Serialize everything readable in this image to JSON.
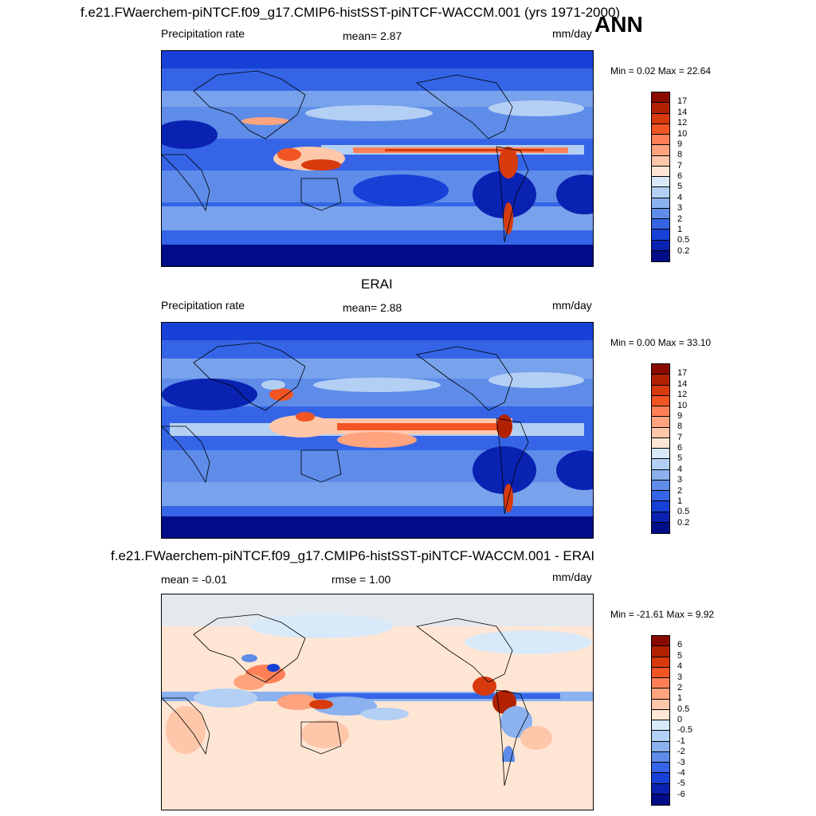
{
  "header": {
    "main_title": "f.e21.FWaerchem-piNTCF.f09_g17.CMIP6-histSST-piNTCF-WACCM.001 (yrs 1971-2000)",
    "season": "ANN"
  },
  "panels": [
    {
      "id": "model",
      "title": "",
      "left_label": "Precipitation rate",
      "center_label": "mean=   2.87",
      "right_label": "mm/day",
      "minmax": "Min =   0.02 Max =  22.64",
      "palette": "precip"
    },
    {
      "id": "obs",
      "title": "ERAI",
      "left_label": "Precipitation rate",
      "center_label": "mean=   2.88",
      "right_label": "mm/day",
      "minmax": "Min =   0.00 Max =  33.10",
      "palette": "precip"
    },
    {
      "id": "diff",
      "title": "f.e21.FWaerchem-piNTCF.f09_g17.CMIP6-histSST-piNTCF-WACCM.001 - ERAI",
      "left_label": "mean =  -0.01",
      "center_label": "rmse =   1.00",
      "right_label": "mm/day",
      "minmax": "Min = -21.61 Max =   9.92",
      "palette": "diff"
    }
  ],
  "colorbars": {
    "precip": {
      "levels": [
        "17",
        "14",
        "12",
        "10",
        "9",
        "8",
        "7",
        "6",
        "5",
        "4",
        "3",
        "2",
        "1",
        "0.5",
        "0.2"
      ],
      "colors": [
        "#8b0a00",
        "#b22200",
        "#d73a0c",
        "#f25524",
        "#ff8057",
        "#ffa47e",
        "#ffc7aa",
        "#ffe6d4",
        "#d8e9fa",
        "#b3d0f4",
        "#8bb1ee",
        "#5e8ce8",
        "#3565e6",
        "#1740d6",
        "#0a22b2",
        "#000c88"
      ]
    },
    "diff": {
      "levels": [
        "6",
        "5",
        "4",
        "3",
        "2",
        "1",
        "0.5",
        "0",
        "-0.5",
        "-1",
        "-2",
        "-3",
        "-4",
        "-5",
        "-6"
      ],
      "colors": [
        "#8b0a00",
        "#b22200",
        "#d73a0c",
        "#f25524",
        "#ff8057",
        "#ffa47e",
        "#ffc7aa",
        "#ffe6d4",
        "#d8e9fa",
        "#b3d0f4",
        "#8bb1ee",
        "#5e8ce8",
        "#3565e6",
        "#1740d6",
        "#0a22b2",
        "#000c88"
      ]
    }
  }
}
